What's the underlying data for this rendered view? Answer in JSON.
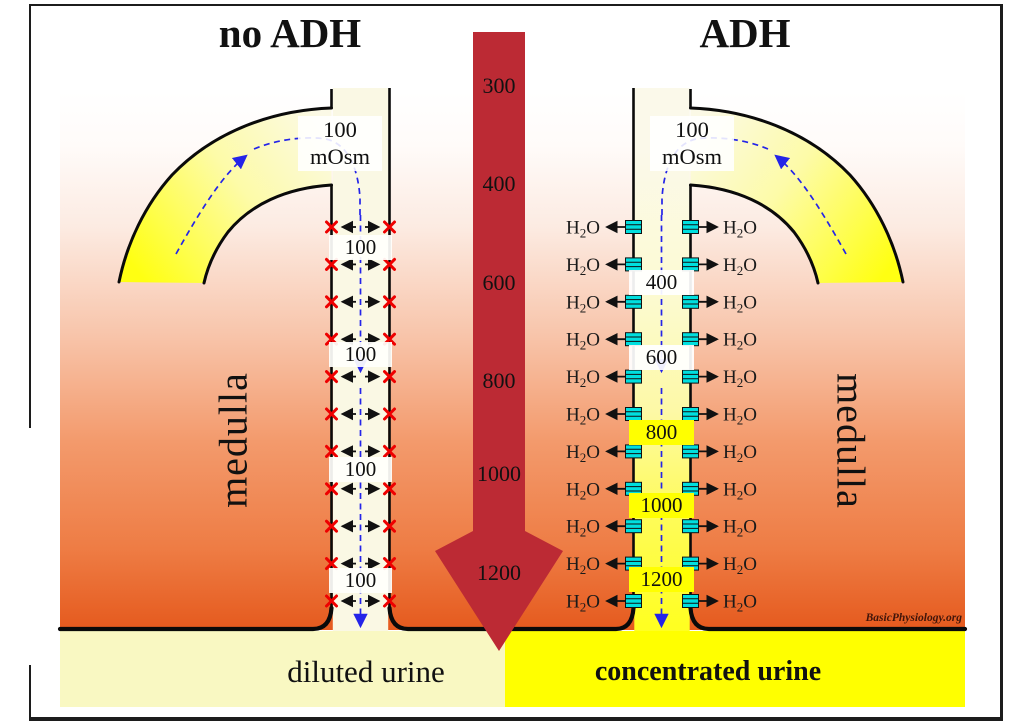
{
  "header": {
    "left_title": "no ADH",
    "right_title": "ADH"
  },
  "inflow_label": {
    "value": "100",
    "unit": "mOsm"
  },
  "osmotic_gradient": {
    "values": [
      "300",
      "400",
      "600",
      "800",
      "1000",
      "1200"
    ]
  },
  "no_adh_duct": {
    "lumen_values": [
      "100",
      "100",
      "100",
      "100"
    ]
  },
  "adh_duct": {
    "lumen_values": [
      "400",
      "600",
      "800",
      "1000",
      "1200"
    ],
    "water_label": {
      "pre": "H",
      "sub": "2",
      "post": "O"
    },
    "exchange_rows": 11
  },
  "tissue_labels": {
    "left": "medulla",
    "right": "medulla"
  },
  "outcome": {
    "left": "diluted urine",
    "right": "concentrated urine"
  },
  "watermark": "BasicPhysiology.org",
  "colors": {
    "gradient_arrow": "#bc2a34",
    "blocked_x": "#ee0000",
    "aquaporin": "#00dfdf",
    "flow_dash": "#2424e8",
    "diluted_urine_bg": "#f9f8c2",
    "concentrated_urine_bg": "#ffff00"
  }
}
